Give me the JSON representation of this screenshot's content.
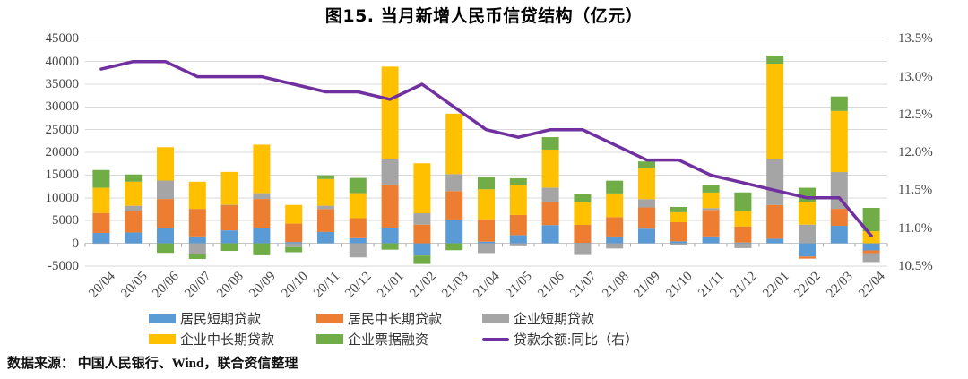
{
  "title": "图15.  当月新增人民币信贷结构（亿元）",
  "footer": "数据来源： 中国人民银行、Wind，联合资信整理",
  "colors": {
    "household_short": "#5B9BD5",
    "household_medium_long": "#ED7D31",
    "corporate_short": "#A5A5A5",
    "corporate_medium_long": "#FFC000",
    "corporate_bills": "#70AD47",
    "loan_balance_yoy_line": "#7030A0",
    "gridline": "#D9D9D9",
    "zero_axis": "#C6C6C6",
    "axis_text": "#474747"
  },
  "chart_data": {
    "type": "bar",
    "subtype": "stacked-bar-with-line-right-axis",
    "title": "图15.  当月新增人民币信贷结构（亿元）",
    "grid": true,
    "legend_position": "bottom",
    "categories": [
      "20/04",
      "20/05",
      "20/06",
      "20/07",
      "20/08",
      "20/09",
      "20/10",
      "20/11",
      "20/12",
      "21/01",
      "21/02",
      "21/03",
      "21/04",
      "21/05",
      "21/06",
      "21/07",
      "21/08",
      "21/09",
      "21/10",
      "21/11",
      "21/12",
      "22/01",
      "22/02",
      "22/03",
      "22/04"
    ],
    "bar_series": [
      {
        "name": "居民短期贷款",
        "color": "#5B9BD5",
        "values": [
          2280,
          2381,
          3400,
          1510,
          2844,
          3394,
          272,
          2486,
          1142,
          3278,
          -2691,
          5242,
          365,
          1806,
          4002,
          85,
          1496,
          3219,
          426,
          1517,
          157,
          1006,
          -2911,
          3848,
          -1565
        ]
      },
      {
        "name": "居民中长期贷款",
        "color": "#ED7D31",
        "values": [
          4389,
          4662,
          6349,
          6067,
          5571,
          6362,
          4059,
          5049,
          4392,
          9448,
          4113,
          6239,
          4918,
          4426,
          5156,
          3974,
          4259,
          4667,
          4221,
          5821,
          3558,
          7424,
          -459,
          3735,
          -605
        ]
      },
      {
        "name": "企业短期贷款",
        "color": "#A5A5A5",
        "values": [
          -62,
          1211,
          4051,
          -2421,
          47,
          1274,
          -837,
          734,
          -3097,
          5755,
          2497,
          3748,
          -2147,
          -644,
          3091,
          -2577,
          -1149,
          1826,
          -288,
          410,
          -1054,
          10100,
          4111,
          8089,
          -1948
        ]
      },
      {
        "name": "企业中长期贷款",
        "color": "#FFC000",
        "values": [
          5547,
          5305,
          7348,
          5968,
          7252,
          10680,
          4113,
          5887,
          5500,
          20400,
          11000,
          13300,
          6605,
          6528,
          8367,
          4937,
          5215,
          6948,
          2190,
          3417,
          3393,
          21000,
          5052,
          13448,
          2652
        ]
      },
      {
        "name": "企业票据融资",
        "color": "#70AD47",
        "values": [
          3910,
          1586,
          -2104,
          -1021,
          -1676,
          -2632,
          -1124,
          804,
          3341,
          -1405,
          -1855,
          -1525,
          2711,
          1538,
          2747,
          1771,
          2813,
          1353,
          1160,
          1605,
          4087,
          1788,
          3052,
          3187,
          5148
        ]
      }
    ],
    "line_series": {
      "name": "贷款余额:同比（右）",
      "color": "#7030A0",
      "axis": "right",
      "values": [
        13.1,
        13.2,
        13.2,
        13.0,
        13.0,
        13.0,
        12.9,
        12.8,
        12.8,
        12.7,
        12.9,
        12.6,
        12.3,
        12.2,
        12.3,
        12.3,
        12.1,
        11.9,
        11.9,
        11.7,
        11.6,
        11.5,
        11.4,
        11.4,
        10.9
      ]
    },
    "left_axis": {
      "min": -5000,
      "max": 45000,
      "step": 5000,
      "tick_labels": [
        "45000",
        "40000",
        "35000",
        "30000",
        "25000",
        "20000",
        "15000",
        "10000",
        "5000",
        "0",
        "-5000"
      ]
    },
    "right_axis": {
      "min": 10.5,
      "max": 13.5,
      "step": 0.5,
      "tick_labels": [
        "13.5%",
        "13.0%",
        "12.5%",
        "12.0%",
        "11.5%",
        "11.0%",
        "10.5%"
      ]
    }
  }
}
